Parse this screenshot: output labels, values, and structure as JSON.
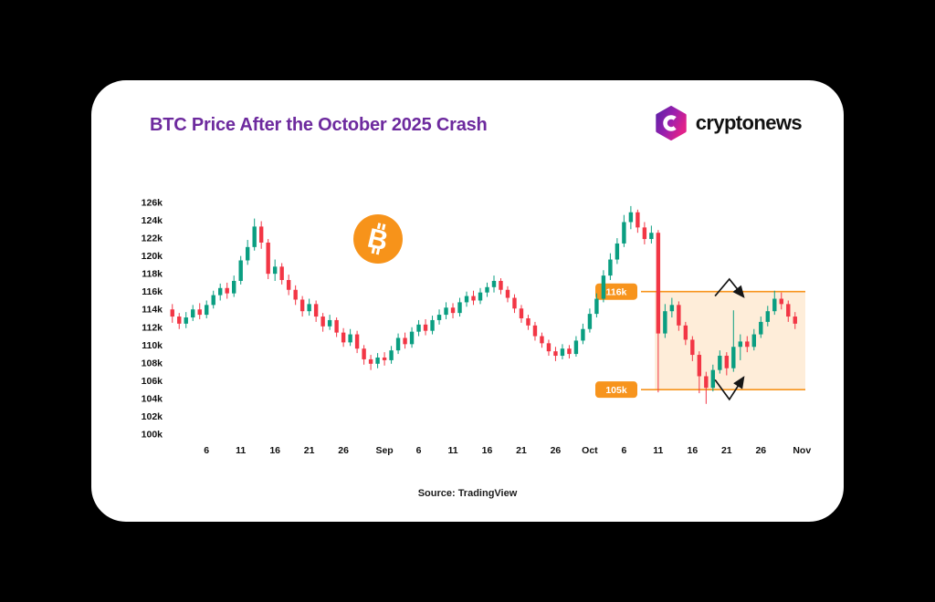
{
  "header": {
    "title": "BTC Price After the October 2025 Crash",
    "title_color": "#6d2a9e",
    "logo_text": "cryptonews"
  },
  "footer": {
    "source": "Source: TradingView"
  },
  "chart_data": {
    "type": "candlestick",
    "title": "BTC Price After the October 2025 Crash",
    "x_period": "Aug 1 2025 - Oct 31 2025 (daily candles)",
    "ylim": [
      100,
      126
    ],
    "y_tick_unit": "k USD",
    "y_ticks": [
      "126k",
      "124k",
      "122k",
      "120k",
      "118k",
      "116k",
      "114k",
      "112k",
      "110k",
      "108k",
      "106k",
      "104k",
      "102k",
      "100k"
    ],
    "x_ticks": [
      {
        "label": "6",
        "i": 5
      },
      {
        "label": "11",
        "i": 10
      },
      {
        "label": "16",
        "i": 15
      },
      {
        "label": "21",
        "i": 20
      },
      {
        "label": "26",
        "i": 25
      },
      {
        "label": "Sep",
        "i": 31
      },
      {
        "label": "6",
        "i": 36
      },
      {
        "label": "11",
        "i": 41
      },
      {
        "label": "16",
        "i": 46
      },
      {
        "label": "21",
        "i": 51
      },
      {
        "label": "26",
        "i": 56
      },
      {
        "label": "Oct",
        "i": 61
      },
      {
        "label": "6",
        "i": 66
      },
      {
        "label": "11",
        "i": 71
      },
      {
        "label": "16",
        "i": 76
      },
      {
        "label": "21",
        "i": 81
      },
      {
        "label": "26",
        "i": 86
      },
      {
        "label": "Nov",
        "i": 92
      }
    ],
    "highlight": {
      "start_i": 71,
      "top": 116,
      "bottom": 105,
      "top_label": "116k",
      "bottom_label": "105k"
    },
    "annotations": {
      "arrows": [
        {
          "name": "bounce-arrow-top",
          "pts": [
            [
              79.3,
              115.5
            ],
            [
              81.4,
              117.4
            ],
            [
              83.5,
              115.4
            ]
          ]
        },
        {
          "name": "bounce-arrow-bottom",
          "pts": [
            [
              79.3,
              106.1
            ],
            [
              81.4,
              103.9
            ],
            [
              83.5,
              106.4
            ]
          ]
        }
      ]
    },
    "colors": {
      "up": "#0a9e81",
      "down": "#f23645",
      "level": "#f7941d",
      "region_fill": "rgba(247,148,29,0.17)",
      "axis_text": "#111111",
      "annotation": "#151515"
    },
    "candles_format": [
      "open",
      "high",
      "low",
      "close"
    ],
    "candles": [
      [
        114.0,
        114.6,
        112.5,
        113.2
      ],
      [
        113.2,
        113.6,
        111.8,
        112.4
      ],
      [
        112.4,
        113.7,
        111.9,
        113.1
      ],
      [
        113.1,
        114.5,
        112.7,
        114.0
      ],
      [
        114.0,
        114.7,
        112.9,
        113.4
      ],
      [
        113.4,
        115.0,
        113.0,
        114.5
      ],
      [
        114.5,
        116.1,
        114.1,
        115.6
      ],
      [
        115.6,
        116.9,
        115.0,
        116.4
      ],
      [
        116.4,
        117.0,
        115.2,
        115.8
      ],
      [
        115.8,
        117.8,
        115.4,
        117.2
      ],
      [
        117.2,
        120.0,
        116.8,
        119.5
      ],
      [
        119.5,
        121.8,
        119.0,
        121.0
      ],
      [
        121.0,
        124.2,
        120.6,
        123.3
      ],
      [
        123.3,
        123.9,
        120.8,
        121.5
      ],
      [
        121.5,
        121.9,
        117.4,
        118.0
      ],
      [
        118.0,
        119.6,
        117.2,
        118.8
      ],
      [
        118.8,
        119.2,
        116.8,
        117.3
      ],
      [
        117.3,
        117.9,
        115.6,
        116.2
      ],
      [
        116.2,
        116.7,
        114.5,
        115.1
      ],
      [
        115.1,
        115.5,
        113.2,
        113.8
      ],
      [
        113.8,
        115.2,
        113.3,
        114.6
      ],
      [
        114.6,
        115.0,
        112.6,
        113.2
      ],
      [
        113.2,
        113.6,
        111.5,
        112.1
      ],
      [
        112.1,
        113.4,
        111.7,
        112.8
      ],
      [
        112.8,
        113.1,
        110.9,
        111.4
      ],
      [
        111.4,
        111.9,
        109.8,
        110.3
      ],
      [
        110.3,
        111.8,
        109.9,
        111.2
      ],
      [
        111.2,
        111.6,
        109.1,
        109.6
      ],
      [
        109.6,
        110.0,
        107.8,
        108.4
      ],
      [
        108.4,
        108.9,
        107.2,
        107.9
      ],
      [
        107.9,
        109.1,
        107.4,
        108.6
      ],
      [
        108.6,
        109.2,
        107.7,
        108.3
      ],
      [
        108.3,
        109.9,
        107.9,
        109.4
      ],
      [
        109.4,
        111.3,
        109.0,
        110.8
      ],
      [
        110.8,
        111.4,
        109.6,
        110.1
      ],
      [
        110.1,
        112.0,
        109.7,
        111.5
      ],
      [
        111.5,
        112.8,
        111.0,
        112.3
      ],
      [
        112.3,
        112.9,
        111.1,
        111.6
      ],
      [
        111.6,
        113.3,
        111.2,
        112.8
      ],
      [
        112.8,
        114.0,
        112.3,
        113.4
      ],
      [
        113.4,
        114.8,
        112.9,
        114.2
      ],
      [
        114.2,
        114.7,
        113.0,
        113.6
      ],
      [
        113.6,
        115.3,
        113.2,
        114.8
      ],
      [
        114.8,
        116.0,
        114.3,
        115.5
      ],
      [
        115.5,
        116.1,
        114.5,
        115.0
      ],
      [
        115.0,
        116.4,
        114.6,
        115.9
      ],
      [
        115.9,
        117.0,
        115.4,
        116.5
      ],
      [
        116.5,
        117.8,
        115.9,
        117.2
      ],
      [
        117.2,
        117.5,
        115.7,
        116.2
      ],
      [
        116.2,
        116.6,
        114.8,
        115.3
      ],
      [
        115.3,
        115.7,
        113.6,
        114.1
      ],
      [
        114.1,
        114.5,
        112.5,
        113.0
      ],
      [
        113.0,
        113.4,
        111.7,
        112.2
      ],
      [
        112.2,
        112.6,
        110.5,
        111.0
      ],
      [
        111.0,
        111.4,
        109.7,
        110.2
      ],
      [
        110.2,
        110.6,
        108.8,
        109.3
      ],
      [
        109.3,
        109.8,
        108.2,
        108.8
      ],
      [
        108.8,
        110.1,
        108.4,
        109.6
      ],
      [
        109.6,
        110.0,
        108.5,
        109.0
      ],
      [
        109.0,
        111.0,
        108.7,
        110.5
      ],
      [
        110.5,
        112.4,
        110.1,
        111.8
      ],
      [
        111.8,
        114.1,
        111.4,
        113.5
      ],
      [
        113.5,
        115.8,
        113.1,
        115.2
      ],
      [
        115.2,
        118.4,
        114.8,
        117.8
      ],
      [
        117.8,
        120.3,
        117.3,
        119.6
      ],
      [
        119.6,
        122.0,
        119.1,
        121.4
      ],
      [
        121.4,
        124.6,
        121.0,
        123.8
      ],
      [
        123.8,
        125.6,
        123.0,
        124.9
      ],
      [
        124.9,
        125.2,
        122.6,
        123.2
      ],
      [
        123.2,
        123.8,
        121.3,
        121.9
      ],
      [
        121.9,
        123.4,
        121.4,
        122.6
      ],
      [
        122.6,
        122.9,
        104.7,
        111.3
      ],
      [
        111.3,
        114.6,
        110.8,
        113.8
      ],
      [
        113.8,
        115.3,
        113.1,
        114.5
      ],
      [
        114.5,
        114.9,
        111.6,
        112.2
      ],
      [
        112.2,
        112.6,
        110.0,
        110.6
      ],
      [
        110.6,
        111.0,
        108.2,
        108.9
      ],
      [
        108.9,
        109.3,
        104.6,
        106.5
      ],
      [
        106.5,
        107.0,
        103.4,
        105.2
      ],
      [
        105.2,
        107.8,
        104.8,
        107.2
      ],
      [
        107.2,
        109.4,
        106.8,
        108.8
      ],
      [
        108.8,
        109.2,
        106.6,
        107.4
      ],
      [
        107.4,
        113.9,
        107.0,
        109.8
      ],
      [
        109.8,
        111.2,
        108.3,
        110.4
      ],
      [
        110.4,
        111.0,
        109.2,
        109.8
      ],
      [
        109.8,
        111.8,
        109.4,
        111.2
      ],
      [
        111.2,
        113.2,
        110.8,
        112.6
      ],
      [
        112.6,
        114.4,
        112.1,
        113.8
      ],
      [
        113.8,
        116.1,
        113.4,
        115.2
      ],
      [
        115.2,
        115.9,
        114.0,
        114.6
      ],
      [
        114.6,
        115.0,
        112.6,
        113.2
      ],
      [
        113.2,
        113.7,
        111.8,
        112.4
      ]
    ]
  }
}
